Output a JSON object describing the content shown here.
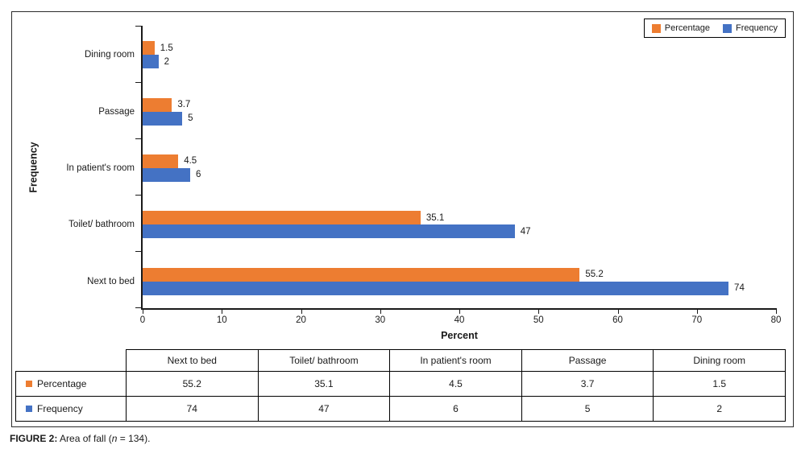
{
  "colors": {
    "percentage": "#ED7D31",
    "frequency": "#4472C4",
    "axis": "#1a1a1a"
  },
  "legend": {
    "items": [
      {
        "label": "Percentage",
        "color": "#ED7D31"
      },
      {
        "label": "Frequency",
        "color": "#4472C4"
      }
    ]
  },
  "chart_data": {
    "type": "bar",
    "orientation": "horizontal",
    "title": "",
    "xlabel": "Percent",
    "ylabel": "Frequency",
    "xlim": [
      0,
      80
    ],
    "xticks": [
      0,
      10,
      20,
      30,
      40,
      50,
      60,
      70,
      80
    ],
    "grid": false,
    "legend_position": "top-right",
    "categories": [
      "Dining room",
      "Passage",
      "In patient's room",
      "Toilet/ bathroom",
      "Next to bed"
    ],
    "series": [
      {
        "name": "Percentage",
        "color": "#ED7D31",
        "values": [
          1.5,
          3.7,
          4.5,
          35.1,
          55.2
        ],
        "labels": [
          "1.5",
          "3.7",
          "4.5",
          "35.1",
          "55.2"
        ]
      },
      {
        "name": "Frequency",
        "color": "#4472C4",
        "values": [
          2,
          5,
          6,
          47,
          74
        ],
        "labels": [
          "2",
          "5",
          "6",
          "47",
          "74"
        ]
      }
    ]
  },
  "table": {
    "columns": [
      "Next to bed",
      "Toilet/ bathroom",
      "In patient's room",
      "Passage",
      "Dining room"
    ],
    "rows": [
      {
        "label": "Percentage",
        "color": "#ED7D31",
        "values": [
          "55.2",
          "35.1",
          "4.5",
          "3.7",
          "1.5"
        ]
      },
      {
        "label": "Frequency",
        "color": "#4472C4",
        "values": [
          "74",
          "47",
          "6",
          "5",
          "2"
        ]
      }
    ]
  },
  "caption": {
    "bold": "FIGURE 2:",
    "pre_italic": " Area of fall (",
    "italic": "n",
    "post_italic": " = 134)."
  }
}
